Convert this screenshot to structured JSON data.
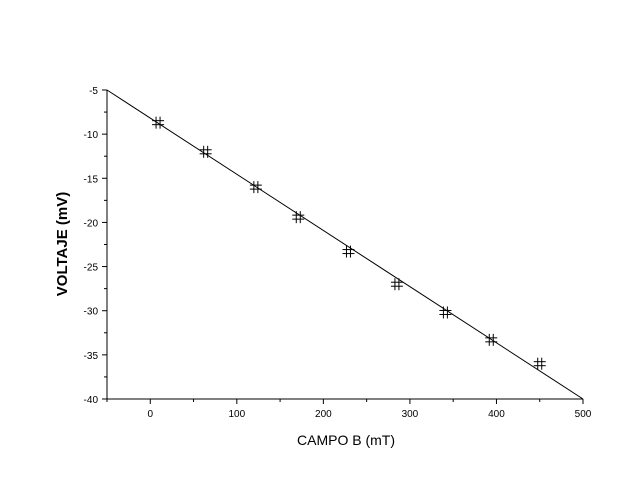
{
  "chart_data": {
    "type": "scatter",
    "xlabel": "CAMPO B (mT)",
    "ylabel": "VOLTAJE (mV)",
    "xlim": [
      -50,
      500
    ],
    "ylim": [
      -40,
      -5
    ],
    "x_ticks": [
      0,
      100,
      200,
      300,
      400,
      500
    ],
    "y_ticks": [
      -5,
      -10,
      -15,
      -20,
      -25,
      -30,
      -35,
      -40
    ],
    "x_tick_labels": [
      "0",
      "100",
      "200",
      "300",
      "400",
      "500"
    ],
    "y_tick_labels": [
      "-5",
      "-10",
      "-15",
      "-20",
      "-25",
      "-30",
      "-35",
      "-40"
    ],
    "grid": false,
    "series": [
      {
        "marker": "plus-cross",
        "points": [
          {
            "x": 9,
            "y": -8.7
          },
          {
            "x": 64,
            "y": -12.0
          },
          {
            "x": 122,
            "y": -16.0
          },
          {
            "x": 171,
            "y": -19.4
          },
          {
            "x": 229,
            "y": -23.3
          },
          {
            "x": 285,
            "y": -27.0
          },
          {
            "x": 341,
            "y": -30.2
          },
          {
            "x": 394,
            "y": -33.3
          },
          {
            "x": 450,
            "y": -36.0
          }
        ]
      }
    ],
    "fit_line": {
      "x": [
        -50,
        500
      ],
      "y": [
        -5.0,
        -40.0
      ]
    },
    "colors": {
      "marks": "#000000",
      "background": "#ffffff"
    }
  }
}
